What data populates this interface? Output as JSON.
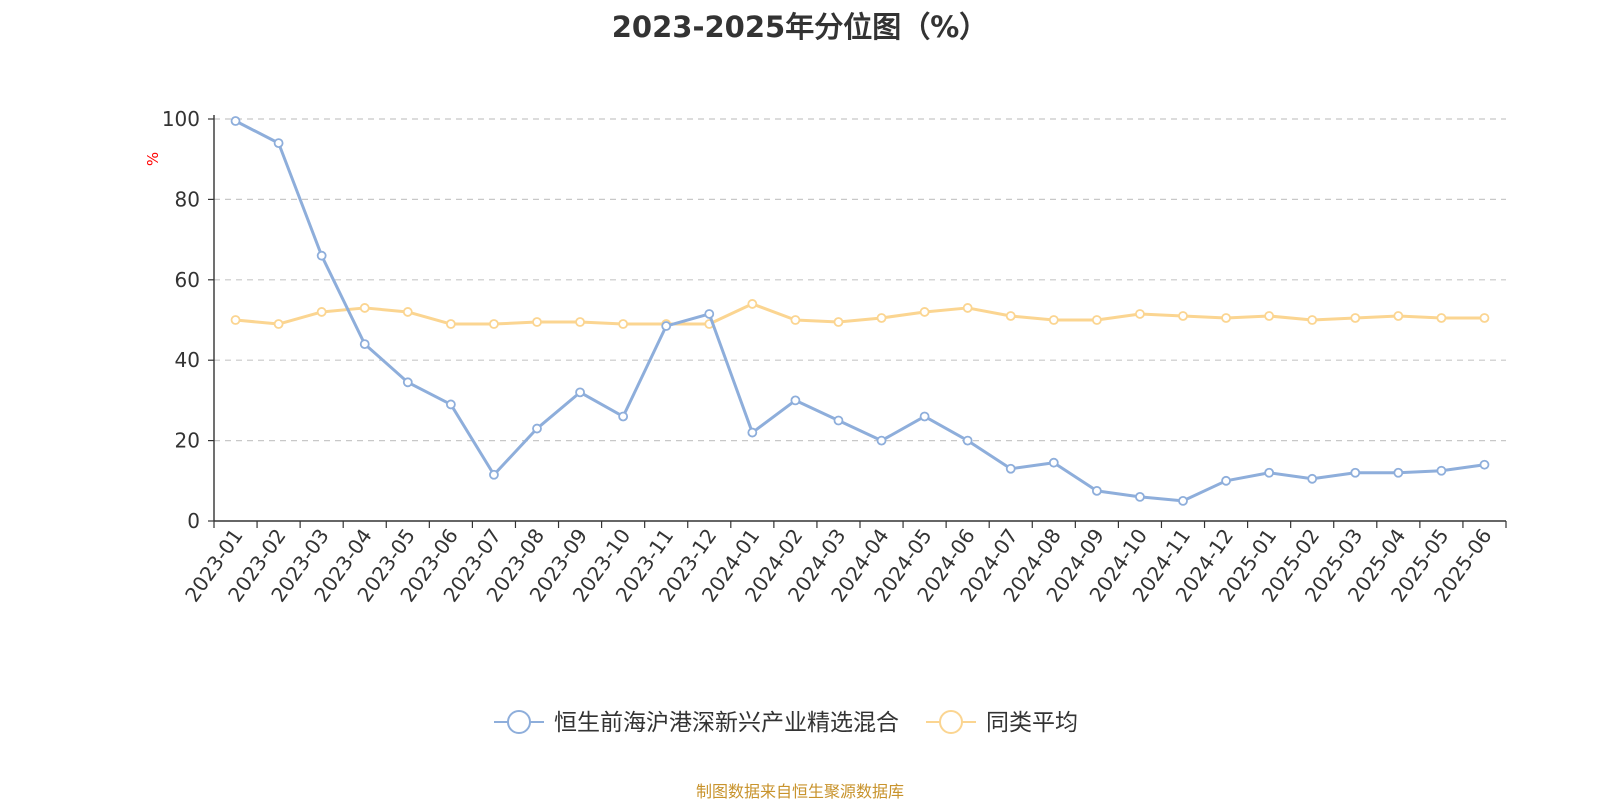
{
  "title": "2023-2025年分位图（%）",
  "source": "制图数据来自恒生聚源数据库",
  "colors": {
    "series1": "#8eaedb",
    "series2": "#fbd591",
    "unit": "#ff0000",
    "source": "#c8932c"
  },
  "chart_data": {
    "type": "line",
    "title": "2023-2025年分位图（%）",
    "xlabel": "",
    "ylabel": "%",
    "ylim": [
      0,
      100
    ],
    "yticks": [
      0,
      20,
      40,
      60,
      80,
      100
    ],
    "grid": true,
    "legend_position": "bottom",
    "categories": [
      "2023-01",
      "2023-02",
      "2023-03",
      "2023-04",
      "2023-05",
      "2023-06",
      "2023-07",
      "2023-08",
      "2023-09",
      "2023-10",
      "2023-11",
      "2023-12",
      "2024-01",
      "2024-02",
      "2024-03",
      "2024-04",
      "2024-05",
      "2024-06",
      "2024-07",
      "2024-08",
      "2024-09",
      "2024-10",
      "2024-11",
      "2024-12",
      "2025-01",
      "2025-02",
      "2025-03",
      "2025-04",
      "2025-05",
      "2025-06"
    ],
    "series": [
      {
        "name": "恒生前海沪港深新兴产业精选混合",
        "values": [
          99.5,
          94,
          66,
          44,
          34.5,
          29,
          11.5,
          23,
          32,
          26,
          48.5,
          51.5,
          22,
          30,
          25,
          20,
          26,
          20,
          13,
          14.5,
          7.5,
          6,
          5,
          10,
          12,
          10.5,
          12,
          12,
          12.5,
          14
        ]
      },
      {
        "name": "同类平均",
        "values": [
          50,
          49,
          52,
          53,
          52,
          49,
          49,
          49.5,
          49.5,
          49,
          49,
          49,
          54,
          50,
          49.5,
          50.5,
          52,
          53,
          51,
          50,
          50,
          51.5,
          51,
          50.5,
          51,
          50,
          50.5,
          51,
          50.5,
          50.5
        ]
      }
    ]
  }
}
